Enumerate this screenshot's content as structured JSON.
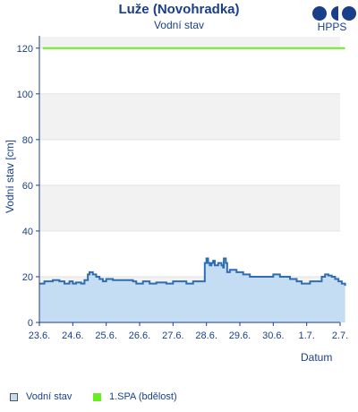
{
  "logo": {
    "text": "HPPS"
  },
  "chart_data": {
    "type": "area",
    "title": "Luže (Novohradka)",
    "subtitle": "Vodní stav",
    "xlabel": "Datum",
    "ylabel": "Vodní stav [cm]",
    "ylim": [
      0,
      125
    ],
    "yticks": [
      0,
      20,
      40,
      60,
      80,
      100,
      120
    ],
    "xticks": [
      "23.6.",
      "24.6.",
      "25.6.",
      "26.6.",
      "27.6.",
      "28.6.",
      "29.6.",
      "30.6.",
      "1.7.",
      "2.7."
    ],
    "xlim_days": [
      0,
      9
    ],
    "grid": "horizontal bands",
    "legend_position": "bottom",
    "series": [
      {
        "name": "Vodní stav",
        "kind": "area",
        "color": "#2e6db4",
        "fill": "#c5ddf2",
        "points": [
          [
            0.0,
            17
          ],
          [
            0.15,
            18
          ],
          [
            0.4,
            18.5
          ],
          [
            0.6,
            18
          ],
          [
            0.75,
            17
          ],
          [
            0.9,
            18
          ],
          [
            1.0,
            17
          ],
          [
            1.1,
            17.5
          ],
          [
            1.25,
            17
          ],
          [
            1.35,
            18.5
          ],
          [
            1.45,
            21
          ],
          [
            1.5,
            22
          ],
          [
            1.6,
            21
          ],
          [
            1.7,
            20
          ],
          [
            1.8,
            19
          ],
          [
            1.9,
            18
          ],
          [
            2.0,
            19
          ],
          [
            2.2,
            18.5
          ],
          [
            2.5,
            18.5
          ],
          [
            2.8,
            18
          ],
          [
            2.9,
            17
          ],
          [
            3.1,
            18
          ],
          [
            3.3,
            17
          ],
          [
            3.5,
            17.5
          ],
          [
            3.8,
            17
          ],
          [
            4.0,
            18
          ],
          [
            4.2,
            18
          ],
          [
            4.4,
            17
          ],
          [
            4.6,
            18
          ],
          [
            4.9,
            18
          ],
          [
            4.95,
            26
          ],
          [
            5.0,
            28
          ],
          [
            5.05,
            26
          ],
          [
            5.1,
            25
          ],
          [
            5.15,
            26
          ],
          [
            5.2,
            27
          ],
          [
            5.25,
            25
          ],
          [
            5.35,
            26
          ],
          [
            5.45,
            25
          ],
          [
            5.5,
            24
          ],
          [
            5.52,
            28
          ],
          [
            5.58,
            26
          ],
          [
            5.62,
            22
          ],
          [
            5.7,
            23
          ],
          [
            5.8,
            23
          ],
          [
            5.9,
            22
          ],
          [
            6.0,
            22
          ],
          [
            6.1,
            21
          ],
          [
            6.3,
            20
          ],
          [
            6.6,
            20
          ],
          [
            6.9,
            20
          ],
          [
            7.0,
            21
          ],
          [
            7.2,
            20
          ],
          [
            7.5,
            19
          ],
          [
            7.7,
            18
          ],
          [
            7.85,
            17
          ],
          [
            8.0,
            17
          ],
          [
            8.1,
            18
          ],
          [
            8.3,
            18
          ],
          [
            8.45,
            20
          ],
          [
            8.55,
            21
          ],
          [
            8.65,
            20.5
          ],
          [
            8.75,
            20
          ],
          [
            8.85,
            19
          ],
          [
            8.95,
            18
          ],
          [
            9.05,
            17
          ],
          [
            9.15,
            16
          ]
        ]
      },
      {
        "name": "1.SPA (bdělost)",
        "kind": "line",
        "color": "#66ee22",
        "points": [
          [
            0.1,
            120
          ],
          [
            9.15,
            120
          ]
        ]
      }
    ]
  },
  "legend": [
    {
      "label": "Vodní stav",
      "color": "#c5ddf2",
      "border": "#555555"
    },
    {
      "label": "1.SPA (bdělost)",
      "color": "#66ee22",
      "border": "#66ee22"
    }
  ]
}
